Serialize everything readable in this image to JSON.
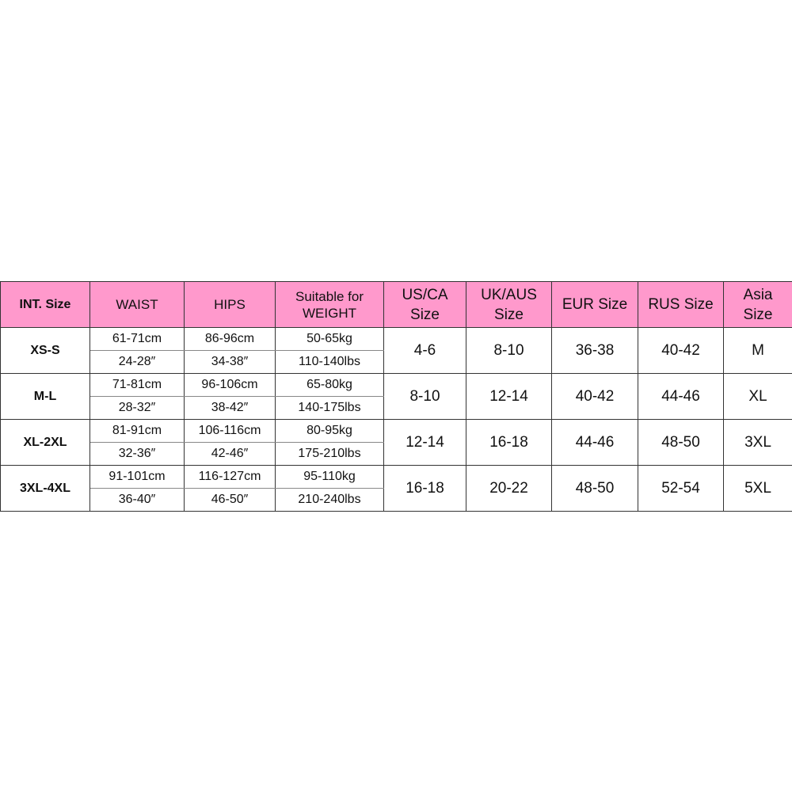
{
  "headers": {
    "int": "INT. Size",
    "waist": "WAIST",
    "hips": "HIPS",
    "weight_1": "Suitable for",
    "weight_2": "WEIGHT",
    "us_1": "US/CA",
    "us_2": "Size",
    "uk_1": "UK/AUS",
    "uk_2": "Size",
    "eur": "EUR Size",
    "rus": "RUS Size",
    "asia_1": "Asia",
    "asia_2": "Size"
  },
  "header_color": "#ff99cc",
  "rows": [
    {
      "int": "XS-S",
      "waist_cm": "61-71cm",
      "waist_in": "24-28″",
      "hips_cm": "86-96cm",
      "hips_in": "34-38″",
      "weight_kg": "50-65kg",
      "weight_lbs": "110-140lbs",
      "us": "4-6",
      "uk": "8-10",
      "eur": "36-38",
      "rus": "40-42",
      "asia": "M"
    },
    {
      "int": "M-L",
      "waist_cm": "71-81cm",
      "waist_in": "28-32″",
      "hips_cm": "96-106cm",
      "hips_in": "38-42″",
      "weight_kg": "65-80kg",
      "weight_lbs": "140-175lbs",
      "us": "8-10",
      "uk": "12-14",
      "eur": "40-42",
      "rus": "44-46",
      "asia": "XL"
    },
    {
      "int": "XL-2XL",
      "waist_cm": "81-91cm",
      "waist_in": "32-36″",
      "hips_cm": "106-116cm",
      "hips_in": "42-46″",
      "weight_kg": "80-95kg",
      "weight_lbs": "175-210lbs",
      "us": "12-14",
      "uk": "16-18",
      "eur": "44-46",
      "rus": "48-50",
      "asia": "3XL"
    },
    {
      "int": "3XL-4XL",
      "waist_cm": "91-101cm",
      "waist_in": "36-40″",
      "hips_cm": "116-127cm",
      "hips_in": "46-50″",
      "weight_kg": "95-110kg",
      "weight_lbs": "210-240lbs",
      "us": "16-18",
      "uk": "20-22",
      "eur": "48-50",
      "rus": "52-54",
      "asia": "5XL"
    }
  ]
}
